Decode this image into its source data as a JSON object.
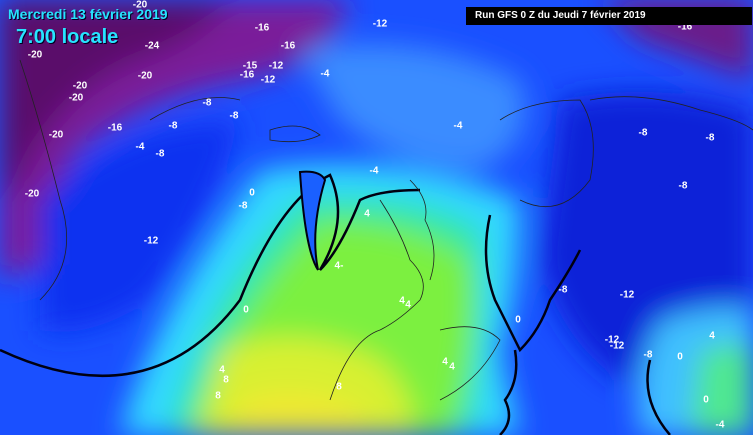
{
  "header": {
    "date": "Mercredi 13 février 2019",
    "time": "7:00 locale",
    "run": "Run GFS 0 Z du Jeudi 7 février 2019"
  },
  "labels": [
    "-20",
    "-20",
    "-24",
    "-16",
    "-16",
    "-12",
    "-20",
    "-20",
    "-20",
    "-15",
    "-12",
    "-16",
    "-12",
    "-4",
    "-8",
    "-8",
    "-16",
    "-8",
    "-20",
    "-4",
    "-8",
    "-4",
    "-8",
    "-8",
    "-4",
    "-20",
    "0",
    "-8",
    "-8",
    "4",
    "-12",
    "4-",
    "-8",
    "-12",
    "4",
    "4",
    "0",
    "0",
    "-12",
    "-12",
    "-8",
    "4",
    "4",
    "4",
    "0",
    "4",
    "8",
    "8",
    "8",
    "0",
    "-4",
    "-16"
  ]
}
